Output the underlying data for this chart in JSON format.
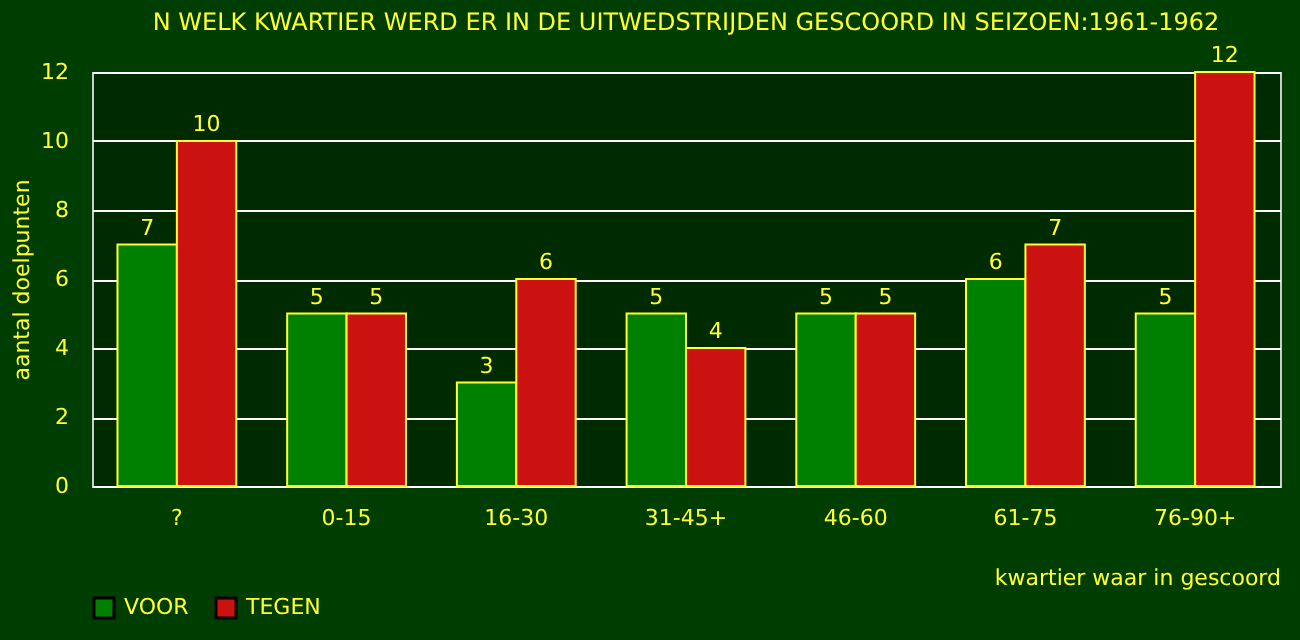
{
  "chart_data": {
    "type": "bar",
    "title": "N WELK KWARTIER WERD ER IN DE UITWEDSTRIJDEN GESCOORD IN SEIZOEN:1961-1962",
    "xlabel": "kwartier waar in gescoord",
    "ylabel": "aantal doelpunten",
    "categories": [
      "?",
      "0-15",
      "16-30",
      "31-45+",
      "46-60",
      "61-75",
      "76-90+"
    ],
    "series": [
      {
        "name": "VOOR",
        "color": "#008000",
        "values": [
          7,
          5,
          3,
          5,
          5,
          6,
          5
        ]
      },
      {
        "name": "TEGEN",
        "color": "#cc1111",
        "values": [
          10,
          5,
          6,
          4,
          5,
          7,
          12
        ]
      }
    ],
    "ylim": [
      0,
      12
    ],
    "yticks": [
      0,
      2,
      4,
      6,
      8,
      10,
      12
    ],
    "grid": "y",
    "legend": "bottom",
    "data_labels": true
  }
}
